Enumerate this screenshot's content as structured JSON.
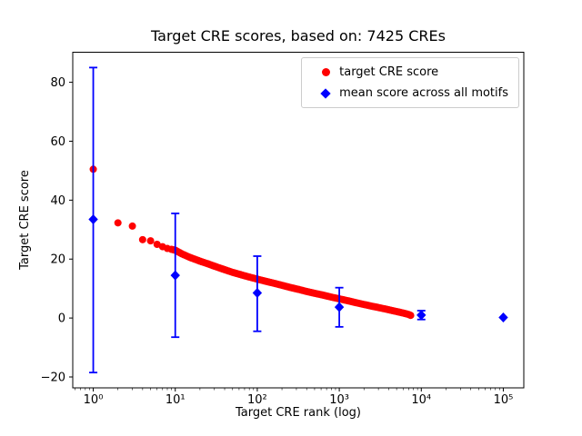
{
  "chart_data": {
    "type": "scatter",
    "title": "Target CRE scores, based on: 7425 CREs",
    "xlabel": "Target CRE rank (log)",
    "ylabel": "Target CRE score",
    "xscale": "log",
    "xlim": [
      0.5623,
      177828
    ],
    "ylim": [
      -23.7,
      90.2
    ],
    "xticks": [
      1,
      10,
      100,
      1000,
      10000,
      100000
    ],
    "xtick_labels": [
      "10⁰",
      "10¹",
      "10²",
      "10³",
      "10⁴",
      "10⁵"
    ],
    "yticks": [
      -20,
      0,
      20,
      40,
      60,
      80
    ],
    "ytick_labels": [
      "−20",
      "0",
      "20",
      "40",
      "60",
      "80"
    ],
    "grid": false,
    "legend_position": "upper right",
    "series": [
      {
        "name": "target CRE score",
        "marker": "circle",
        "color": "#ff0000",
        "points": [
          [
            1,
            50.5
          ],
          [
            2,
            32.3
          ],
          [
            3,
            31.2
          ],
          [
            4,
            26.6
          ],
          [
            5,
            26.2
          ],
          [
            6,
            25.0
          ],
          [
            7,
            24.2
          ],
          [
            8,
            23.6
          ],
          [
            9,
            23.3
          ],
          [
            10,
            23.0
          ],
          [
            12,
            21.8
          ],
          [
            15,
            20.6
          ],
          [
            20,
            19.3
          ],
          [
            25,
            18.4
          ],
          [
            30,
            17.6
          ],
          [
            40,
            16.4
          ],
          [
            50,
            15.5
          ],
          [
            65,
            14.6
          ],
          [
            80,
            13.9
          ],
          [
            100,
            13.2
          ],
          [
            130,
            12.4
          ],
          [
            160,
            11.8
          ],
          [
            200,
            11.1
          ],
          [
            250,
            10.4
          ],
          [
            320,
            9.7
          ],
          [
            400,
            9.0
          ],
          [
            500,
            8.4
          ],
          [
            650,
            7.7
          ],
          [
            800,
            7.1
          ],
          [
            1000,
            6.5
          ],
          [
            1300,
            5.8
          ],
          [
            1600,
            5.2
          ],
          [
            2000,
            4.6
          ],
          [
            2500,
            4.0
          ],
          [
            3200,
            3.4
          ],
          [
            4000,
            2.8
          ],
          [
            5000,
            2.2
          ],
          [
            6000,
            1.7
          ],
          [
            7000,
            1.2
          ],
          [
            7425,
            0.9
          ]
        ]
      },
      {
        "name": "mean score across all motifs",
        "marker": "diamond",
        "color": "#0000ff",
        "x": [
          1,
          10,
          100,
          1000,
          10000,
          100000
        ],
        "y": [
          33.5,
          14.5,
          8.5,
          3.7,
          1.0,
          0.2
        ],
        "err_top": [
          85.0,
          35.5,
          21.0,
          10.3,
          2.5,
          0.2
        ],
        "err_bottom": [
          -18.5,
          -6.5,
          -4.5,
          -3.0,
          -0.5,
          0.2
        ]
      }
    ]
  }
}
